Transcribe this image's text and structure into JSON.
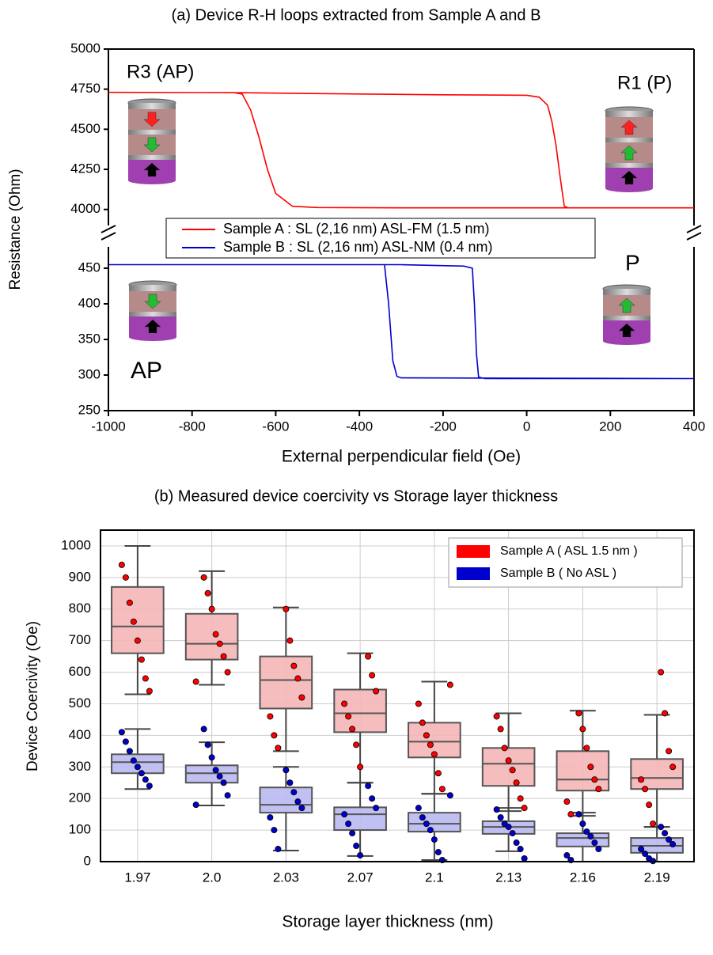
{
  "chart_data": [
    {
      "type": "line",
      "title": "(a)  Device R-H loops extracted from Sample A and B",
      "xlabel": "External perpendicular field (Oe)",
      "ylabel": "Resistance (Ohm)",
      "xlim": [
        -1000,
        400
      ],
      "xticks": [
        -1000,
        -800,
        -600,
        -400,
        -200,
        0,
        200,
        400
      ],
      "broken_axis": true,
      "panels": [
        {
          "ylim": [
            3900,
            5000
          ],
          "yticks": [
            4000,
            4250,
            4500,
            4750,
            5000
          ]
        },
        {
          "ylim": [
            250,
            480
          ],
          "yticks": [
            250,
            300,
            350,
            400,
            450
          ]
        }
      ],
      "annotations": [
        "R3 (AP)",
        "R1 (P)",
        "P",
        "AP"
      ],
      "series": [
        {
          "name": "Sample A : SL (2,16 nm) ASL-FM (1.5 nm)",
          "color": "#ff0000",
          "panel": 0,
          "x": [
            -1000,
            -700,
            -400,
            -200,
            0,
            30,
            50,
            60,
            70,
            80,
            90,
            100,
            400,
            -300,
            -500,
            -560,
            -600,
            -620,
            -640,
            -660,
            -680,
            -700,
            -1000
          ],
          "values": [
            4730,
            4728,
            4720,
            4715,
            4712,
            4700,
            4650,
            4550,
            4400,
            4200,
            4020,
            4010,
            4010,
            4010,
            4012,
            4020,
            4100,
            4250,
            4450,
            4620,
            4720,
            4728,
            4730
          ]
        },
        {
          "name": "Sample B : SL (2,16 nm) ASL-NM (0.4 nm)",
          "color": "#0000cc",
          "panel": 1,
          "x": [
            -1000,
            -340,
            -330,
            -320,
            -310,
            -300,
            400,
            -100,
            -115,
            -120,
            -125,
            -130,
            -150,
            -300,
            -1000
          ],
          "values": [
            455,
            455,
            400,
            320,
            298,
            296,
            295,
            295,
            297,
            330,
            400,
            450,
            453,
            455,
            455
          ]
        }
      ]
    },
    {
      "type": "box",
      "title": "(b) Measured device coercivity vs Storage layer thickness",
      "xlabel": "Storage layer thickness (nm)",
      "ylabel": "Device Coercivity (Oe)",
      "categories": [
        "1.97",
        "2.0",
        "2.03",
        "2.07",
        "2.1",
        "2.13",
        "2.16",
        "2.19"
      ],
      "ylim": [
        0,
        1050
      ],
      "yticks": [
        0,
        100,
        200,
        300,
        400,
        500,
        600,
        700,
        800,
        900,
        1000
      ],
      "grid": true,
      "legend": "upper right",
      "series": [
        {
          "name": "Sample A ( ASL 1.5 nm )",
          "color": "#ff0000",
          "box_color": "#f4b6b6",
          "boxes": [
            [
              530,
              660,
              745,
              870,
              1000
            ],
            [
              560,
              640,
              690,
              785,
              920
            ],
            [
              350,
              485,
              575,
              650,
              805
            ],
            [
              250,
              410,
              470,
              545,
              660
            ],
            [
              215,
              330,
              380,
              440,
              570
            ],
            [
              160,
              240,
              310,
              360,
              470
            ],
            [
              145,
              225,
              260,
              350,
              478
            ],
            [
              110,
              230,
              265,
              325,
              465
            ]
          ],
          "points": [
            [
              940,
              900,
              820,
              760,
              700,
              640,
              580,
              540
            ],
            [
              900,
              850,
              800,
              720,
              690,
              650,
              600,
              570
            ],
            [
              800,
              700,
              620,
              580,
              520,
              460,
              400,
              360
            ],
            [
              650,
              590,
              540,
              500,
              460,
              420,
              370,
              300
            ],
            [
              560,
              500,
              440,
              400,
              370,
              340,
              280,
              230
            ],
            [
              460,
              420,
              360,
              320,
              290,
              250,
              200,
              170
            ],
            [
              470,
              420,
              360,
              300,
              260,
              230,
              190,
              150
            ],
            [
              600,
              470,
              350,
              300,
              260,
              230,
              180,
              120
            ]
          ]
        },
        {
          "name": "Sample B ( No ASL )",
          "color": "#0000cc",
          "box_color": "#b9b9f2",
          "boxes": [
            [
              230,
              280,
              315,
              340,
              420
            ],
            [
              178,
              250,
              280,
              305,
              378
            ],
            [
              35,
              155,
              180,
              235,
              300
            ],
            [
              18,
              100,
              150,
              172,
              250
            ],
            [
              5,
              95,
              120,
              155,
              215
            ],
            [
              33,
              88,
              110,
              128,
              170
            ],
            [
              0,
              48,
              75,
              90,
              155
            ],
            [
              0,
              28,
              50,
              75,
              110
            ]
          ],
          "points": [
            [
              410,
              380,
              350,
              320,
              300,
              280,
              260,
              240
            ],
            [
              420,
              370,
              330,
              290,
              270,
              250,
              210,
              180
            ],
            [
              290,
              250,
              220,
              190,
              170,
              140,
              100,
              40
            ],
            [
              240,
              200,
              170,
              150,
              120,
              90,
              50,
              20
            ],
            [
              210,
              170,
              140,
              120,
              100,
              70,
              30,
              5
            ],
            [
              165,
              140,
              120,
              110,
              90,
              60,
              40,
              10
            ],
            [
              150,
              120,
              95,
              80,
              60,
              40,
              20,
              5
            ],
            [
              110,
              90,
              70,
              55,
              40,
              25,
              10,
              2
            ]
          ]
        }
      ]
    }
  ]
}
